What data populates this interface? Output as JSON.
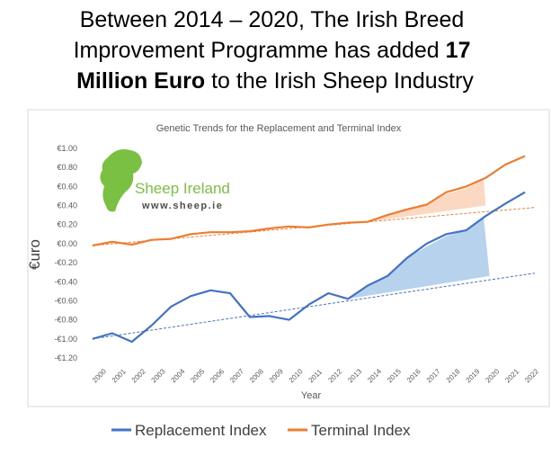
{
  "headline": [
    "Between 2014 – 2020, The Irish Breed",
    "Improvement Programme has added",
    "17",
    "Million Euro",
    "to the Irish Sheep Industry"
  ],
  "chart_data": {
    "type": "line",
    "title": "Genetic Trends for the Replacement and Terminal Index",
    "x_label": "Year",
    "y_label": "€uro",
    "logo_name": "Sheep Ireland",
    "logo_url": "www.sheep.ie",
    "x": [
      2000,
      2001,
      2002,
      2003,
      2004,
      2005,
      2006,
      2007,
      2008,
      2009,
      2010,
      2011,
      2012,
      2013,
      2014,
      2015,
      2016,
      2017,
      2018,
      2019,
      2020,
      2021,
      2022
    ],
    "xlim": [
      1999.5,
      2022.5
    ],
    "xticks": [
      2000,
      2001,
      2002,
      2003,
      2004,
      2005,
      2006,
      2007,
      2008,
      2009,
      2010,
      2011,
      2012,
      2013,
      2014,
      2015,
      2016,
      2017,
      2018,
      2019,
      2020,
      2021,
      2022
    ],
    "ylim": [
      -1.2,
      1.0
    ],
    "yticks": [
      {
        "value": 1.0,
        "label": "€1.00"
      },
      {
        "value": 0.8,
        "label": "€0.80"
      },
      {
        "value": 0.6,
        "label": "€0.60"
      },
      {
        "value": 0.4,
        "label": "€0.40"
      },
      {
        "value": 0.2,
        "label": "€0.20"
      },
      {
        "value": 0,
        "label": "€0.00"
      },
      {
        "value": -0.2,
        "label": "-€0.20"
      },
      {
        "value": -0.4,
        "label": "-€0.40"
      },
      {
        "value": -0.6,
        "label": "-€0.60"
      },
      {
        "value": -0.8,
        "label": "-€0.80"
      },
      {
        "value": -1.0,
        "label": "-€1.00"
      },
      {
        "value": -1.2,
        "label": "-€1.20"
      }
    ],
    "grid": false,
    "legend": "bottom",
    "series": [
      {
        "name": "Replacement Index",
        "color": "#4472c4",
        "values": [
          -1.0,
          -0.94,
          -1.03,
          -0.86,
          -0.66,
          -0.55,
          -0.49,
          -0.52,
          -0.77,
          -0.76,
          -0.8,
          -0.64,
          -0.52,
          -0.58,
          -0.44,
          -0.34,
          -0.15,
          0.0,
          0.1,
          0.14,
          0.29,
          0.42,
          0.54
        ]
      },
      {
        "name": "Terminal Index",
        "color": "#ed7d31",
        "values": [
          -0.02,
          0.02,
          -0.01,
          0.04,
          0.05,
          0.1,
          0.12,
          0.12,
          0.13,
          0.16,
          0.18,
          0.17,
          0.2,
          0.22,
          0.23,
          0.3,
          0.36,
          0.41,
          0.54,
          0.6,
          0.69,
          0.83,
          0.92
        ]
      }
    ],
    "trendlines": [
      {
        "color": "#4472c4",
        "x": [
          2000,
          2022.5
        ],
        "values": [
          -1.0,
          -0.31
        ]
      },
      {
        "color": "#ed7d31",
        "x": [
          2000,
          2022.5
        ],
        "values": [
          -0.02,
          0.38
        ]
      }
    ],
    "shaded_areas": [
      {
        "color": "#9dc3e6",
        "x": [
          2013,
          2014,
          2015,
          2016,
          2017,
          2018,
          2019,
          2019.9,
          2020.2
        ],
        "values": [
          -0.58,
          -0.44,
          -0.34,
          -0.15,
          -0.03,
          0.08,
          0.14,
          0.27,
          -0.34
        ]
      },
      {
        "color": "#f8cbad",
        "x": [
          2014,
          2015,
          2016,
          2017,
          2018,
          2019,
          2019.9,
          2020
        ],
        "values": [
          0.23,
          0.3,
          0.35,
          0.4,
          0.52,
          0.58,
          0.68,
          0.4
        ]
      }
    ]
  }
}
